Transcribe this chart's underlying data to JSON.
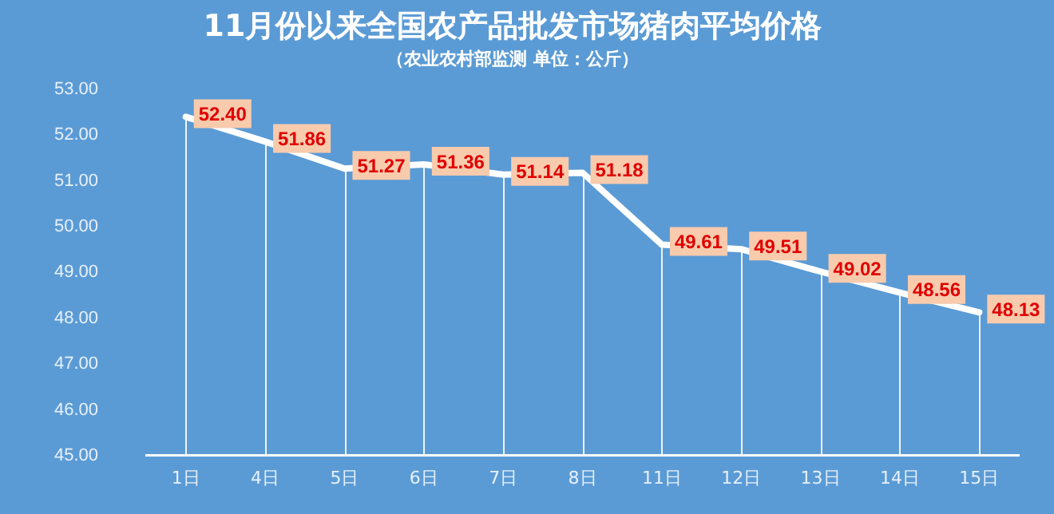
{
  "chart_data": {
    "type": "line",
    "title": "11月份以来全国农产品批发市场猪肉平均价格",
    "subtitle": "（农业农村部监测 单位：公斤）",
    "categories": [
      "1日",
      "4日",
      "5日",
      "6日",
      "7日",
      "8日",
      "11日",
      "12日",
      "13日",
      "14日",
      "15日"
    ],
    "series": [
      {
        "color": "#ffffff",
        "values": [
          52.4,
          51.86,
          51.27,
          51.36,
          51.14,
          51.18,
          49.61,
          49.51,
          49.02,
          48.56,
          48.13
        ],
        "value_labels": [
          "52.40",
          "51.86",
          "51.27",
          "51.36",
          "51.14",
          "51.18",
          "49.61",
          "49.51",
          "49.02",
          "48.56",
          "48.13"
        ]
      }
    ],
    "ylim": [
      45,
      53
    ],
    "yticks": [
      {
        "value": 45,
        "label": "45.00"
      },
      {
        "value": 46,
        "label": "46.00"
      },
      {
        "value": 47,
        "label": "47.00"
      },
      {
        "value": 48,
        "label": "48.00"
      },
      {
        "value": 49,
        "label": "49.00"
      },
      {
        "value": 50,
        "label": "50.00"
      },
      {
        "value": 51,
        "label": "51.00"
      },
      {
        "value": 52,
        "label": "52.00"
      },
      {
        "value": 53,
        "label": "53.00"
      }
    ],
    "grid": "x",
    "legend": false,
    "marker": "none",
    "line_style": "solid"
  }
}
